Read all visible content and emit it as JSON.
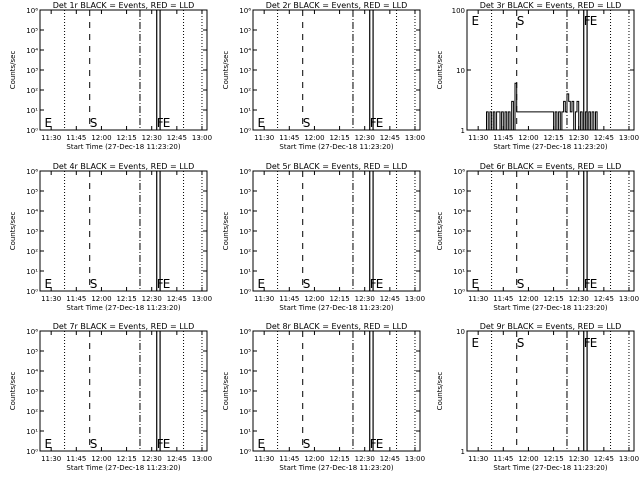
{
  "panels": [
    {
      "title": "Det 1r BLACK = Events, RED = LLD",
      "ylabel": "Counts/sec",
      "xlabel": "Start Time (27-Dec-18 11:23:20)",
      "y_ticks": [
        "10⁶",
        "10⁵",
        "10⁴",
        "10³",
        "10²",
        "10¹",
        "10⁰"
      ],
      "x_ticks": [
        "11:30",
        "11:45",
        "12:00",
        "12:15",
        "12:30",
        "12:45",
        "13:00"
      ],
      "markers": [
        {
          "label": "E",
          "t": "11:26"
        },
        {
          "label": "S",
          "t": "11:53"
        },
        {
          "label": "F",
          "t": "12:33"
        },
        {
          "label": "E",
          "t": "12:36"
        }
      ],
      "series": []
    },
    {
      "title": "Det 2r BLACK = Events, RED = LLD",
      "ylabel": "Counts/sec",
      "xlabel": "Start Time (27-Dec-18 11:23:20)",
      "y_ticks": [
        "10⁶",
        "10⁵",
        "10⁴",
        "10³",
        "10²",
        "10¹",
        "10⁰"
      ],
      "x_ticks": [
        "11:30",
        "11:45",
        "12:00",
        "12:15",
        "12:30",
        "12:45",
        "13:00"
      ],
      "markers": [
        {
          "label": "E",
          "t": "11:26"
        },
        {
          "label": "S",
          "t": "11:53"
        },
        {
          "label": "F",
          "t": "12:33"
        },
        {
          "label": "E",
          "t": "12:36"
        }
      ],
      "series": []
    },
    {
      "title": "Det 3r BLACK = Events, RED = LLD",
      "ylabel": "Counts/sec",
      "xlabel": "Start Time (27-Dec-18 11:23:20)",
      "y_ticks": [
        "100",
        "10",
        "1"
      ],
      "x_ticks": [
        "11:30",
        "11:45",
        "12:00",
        "12:15",
        "12:30",
        "12:45",
        "13:00"
      ],
      "markers": [
        {
          "label": "E",
          "t": "11:26"
        },
        {
          "label": "S",
          "t": "11:53"
        },
        {
          "label": "F",
          "t": "12:33"
        },
        {
          "label": "E",
          "t": "12:36"
        }
      ],
      "series": [
        {
          "x": [
            "11:34",
            "11:35",
            "11:36",
            "11:37",
            "11:38",
            "11:39",
            "11:40",
            "11:41",
            "11:42",
            "11:43",
            "11:44",
            "11:45",
            "11:46",
            "11:47",
            "11:48",
            "11:49",
            "11:50",
            "11:51",
            "11:52",
            "11:53",
            "12:15",
            "12:16",
            "12:17",
            "12:18",
            "12:19",
            "12:20",
            "12:21",
            "12:22",
            "12:23",
            "12:24",
            "12:25",
            "12:26",
            "12:27",
            "12:28",
            "12:29",
            "12:30",
            "12:31",
            "12:32",
            "12:33",
            "12:34",
            "12:35",
            "12:36",
            "12:37",
            "12:38",
            "12:39",
            "12:40",
            "12:41"
          ],
          "y": [
            1,
            2,
            1,
            2,
            1,
            2,
            1,
            2,
            2,
            1,
            2,
            1,
            2,
            1,
            2,
            1,
            3,
            1,
            6,
            2,
            1,
            2,
            1,
            2,
            1,
            2,
            3,
            2,
            4,
            3,
            2,
            3,
            1,
            2,
            3,
            1,
            2,
            1,
            1,
            2,
            1,
            2,
            1,
            2,
            1,
            2,
            1
          ]
        }
      ]
    },
    {
      "title": "Det 4r BLACK = Events, RED = LLD",
      "ylabel": "Counts/sec",
      "xlabel": "Start Time (27-Dec-18 11:23:20)",
      "y_ticks": [
        "10⁶",
        "10⁵",
        "10⁴",
        "10³",
        "10²",
        "10¹",
        "10⁰"
      ],
      "x_ticks": [
        "11:30",
        "11:45",
        "12:00",
        "12:15",
        "12:30",
        "12:45",
        "13:00"
      ],
      "markers": [
        {
          "label": "E",
          "t": "11:26"
        },
        {
          "label": "S",
          "t": "11:53"
        },
        {
          "label": "F",
          "t": "12:33"
        },
        {
          "label": "E",
          "t": "12:36"
        }
      ],
      "series": []
    },
    {
      "title": "Det 5r BLACK = Events, RED = LLD",
      "ylabel": "Counts/sec",
      "xlabel": "Start Time (27-Dec-18 11:23:20)",
      "y_ticks": [
        "10⁶",
        "10⁵",
        "10⁴",
        "10³",
        "10²",
        "10¹",
        "10⁰"
      ],
      "x_ticks": [
        "11:30",
        "11:45",
        "12:00",
        "12:15",
        "12:30",
        "12:45",
        "13:00"
      ],
      "markers": [
        {
          "label": "E",
          "t": "11:26"
        },
        {
          "label": "S",
          "t": "11:53"
        },
        {
          "label": "F",
          "t": "12:33"
        },
        {
          "label": "E",
          "t": "12:36"
        }
      ],
      "series": []
    },
    {
      "title": "Det 6r BLACK = Events, RED = LLD",
      "ylabel": "Counts/sec",
      "xlabel": "Start Time (27-Dec-18 11:23:20)",
      "y_ticks": [
        "10⁶",
        "10⁵",
        "10⁴",
        "10³",
        "10²",
        "10¹",
        "10⁰"
      ],
      "x_ticks": [
        "11:30",
        "11:45",
        "12:00",
        "12:15",
        "12:30",
        "12:45",
        "13:00"
      ],
      "markers": [
        {
          "label": "E",
          "t": "11:26"
        },
        {
          "label": "S",
          "t": "11:53"
        },
        {
          "label": "F",
          "t": "12:33"
        },
        {
          "label": "E",
          "t": "12:36"
        }
      ],
      "series": []
    },
    {
      "title": "Det 7r BLACK = Events, RED = LLD",
      "ylabel": "Counts/sec",
      "xlabel": "Start Time (27-Dec-18 11:23:20)",
      "y_ticks": [
        "10⁶",
        "10⁵",
        "10⁴",
        "10³",
        "10²",
        "10¹",
        "10⁰"
      ],
      "x_ticks": [
        "11:30",
        "11:45",
        "12:00",
        "12:15",
        "12:30",
        "12:45",
        "13:00"
      ],
      "markers": [
        {
          "label": "E",
          "t": "11:26"
        },
        {
          "label": "S",
          "t": "11:53"
        },
        {
          "label": "F",
          "t": "12:33"
        },
        {
          "label": "E",
          "t": "12:36"
        }
      ],
      "series": []
    },
    {
      "title": "Det 8r BLACK = Events, RED = LLD",
      "ylabel": "Counts/sec",
      "xlabel": "Start Time (27-Dec-18 11:23:20)",
      "y_ticks": [
        "10⁶",
        "10⁵",
        "10⁴",
        "10³",
        "10²",
        "10¹",
        "10⁰"
      ],
      "x_ticks": [
        "11:30",
        "11:45",
        "12:00",
        "12:15",
        "12:30",
        "12:45",
        "13:00"
      ],
      "markers": [
        {
          "label": "E",
          "t": "11:26"
        },
        {
          "label": "S",
          "t": "11:53"
        },
        {
          "label": "F",
          "t": "12:33"
        },
        {
          "label": "E",
          "t": "12:36"
        }
      ],
      "series": []
    },
    {
      "title": "Det 9r BLACK = Events, RED = LLD",
      "ylabel": "Counts/sec",
      "xlabel": "Start Time (27-Dec-18 11:23:20)",
      "y_ticks": [
        "10",
        "1"
      ],
      "x_ticks": [
        "11:30",
        "11:45",
        "12:00",
        "12:15",
        "12:30",
        "12:45",
        "13:00"
      ],
      "markers": [
        {
          "label": "E",
          "t": "11:26"
        },
        {
          "label": "S",
          "t": "11:53"
        },
        {
          "label": "F",
          "t": "12:33"
        },
        {
          "label": "E",
          "t": "12:36"
        }
      ],
      "series": []
    }
  ],
  "chart_data": [
    {
      "type": "line",
      "title": "Det 1r BLACK = Events, RED = LLD",
      "xlabel": "Start Time (27-Dec-18 11:23:20)",
      "ylabel": "Counts/sec",
      "xlim": [
        "11:23",
        "13:03"
      ],
      "ylim": [
        1,
        1000000
      ],
      "yscale": "log",
      "series": []
    },
    {
      "type": "line",
      "title": "Det 2r BLACK = Events, RED = LLD",
      "xlabel": "Start Time (27-Dec-18 11:23:20)",
      "ylabel": "Counts/sec",
      "xlim": [
        "11:23",
        "13:03"
      ],
      "ylim": [
        1,
        1000000
      ],
      "yscale": "log",
      "series": []
    },
    {
      "type": "line",
      "title": "Det 3r BLACK = Events, RED = LLD",
      "xlabel": "Start Time (27-Dec-18 11:23:20)",
      "ylabel": "Counts/sec",
      "xlim": [
        "11:23",
        "13:03"
      ],
      "ylim": [
        1,
        100
      ],
      "yscale": "log",
      "series": [
        {
          "x": [
            "11:34",
            "11:35",
            "11:36",
            "11:37",
            "11:38",
            "11:39",
            "11:40",
            "11:41",
            "11:42",
            "11:43",
            "11:44",
            "11:45",
            "11:46",
            "11:47",
            "11:48",
            "11:49",
            "11:50",
            "11:51",
            "11:52",
            "11:53",
            "12:15",
            "12:16",
            "12:17",
            "12:18",
            "12:19",
            "12:20",
            "12:21",
            "12:22",
            "12:23",
            "12:24",
            "12:25",
            "12:26",
            "12:27",
            "12:28",
            "12:29",
            "12:30",
            "12:31",
            "12:32",
            "12:33",
            "12:34",
            "12:35",
            "12:36",
            "12:37",
            "12:38",
            "12:39",
            "12:40",
            "12:41"
          ],
          "values": [
            1,
            2,
            1,
            2,
            1,
            2,
            1,
            2,
            2,
            1,
            2,
            1,
            2,
            1,
            2,
            1,
            3,
            1,
            6,
            2,
            1,
            2,
            1,
            2,
            1,
            2,
            3,
            2,
            4,
            3,
            2,
            3,
            1,
            2,
            3,
            1,
            2,
            1,
            1,
            2,
            1,
            2,
            1,
            2,
            1,
            2,
            1
          ]
        }
      ]
    },
    {
      "type": "line",
      "title": "Det 4r BLACK = Events, RED = LLD",
      "xlabel": "Start Time (27-Dec-18 11:23:20)",
      "ylabel": "Counts/sec",
      "xlim": [
        "11:23",
        "13:03"
      ],
      "ylim": [
        1,
        1000000
      ],
      "yscale": "log",
      "series": []
    },
    {
      "type": "line",
      "title": "Det 5r BLACK = Events, RED = LLD",
      "xlabel": "Start Time (27-Dec-18 11:23:20)",
      "ylabel": "Counts/sec",
      "xlim": [
        "11:23",
        "13:03"
      ],
      "ylim": [
        1,
        1000000
      ],
      "yscale": "log",
      "series": []
    },
    {
      "type": "line",
      "title": "Det 6r BLACK = Events, RED = LLD",
      "xlabel": "Start Time (27-Dec-18 11:23:20)",
      "ylabel": "Counts/sec",
      "xlim": [
        "11:23",
        "13:03"
      ],
      "ylim": [
        1,
        1000000
      ],
      "yscale": "log",
      "series": []
    },
    {
      "type": "line",
      "title": "Det 7r BLACK = Events, RED = LLD",
      "xlabel": "Start Time (27-Dec-18 11:23:20)",
      "ylabel": "Counts/sec",
      "xlim": [
        "11:23",
        "13:03"
      ],
      "ylim": [
        1,
        1000000
      ],
      "yscale": "log",
      "series": []
    },
    {
      "type": "line",
      "title": "Det 8r BLACK = Events, RED = LLD",
      "xlabel": "Start Time (27-Dec-18 11:23:20)",
      "ylabel": "Counts/sec",
      "xlim": [
        "11:23",
        "13:03"
      ],
      "ylim": [
        1,
        1000000
      ],
      "yscale": "log",
      "series": []
    },
    {
      "type": "line",
      "title": "Det 9r BLACK = Events, RED = LLD",
      "xlabel": "Start Time (27-Dec-18 11:23:20)",
      "ylabel": "Counts/sec",
      "xlim": [
        "11:23",
        "13:03"
      ],
      "ylim": [
        1,
        10
      ],
      "yscale": "log",
      "series": []
    }
  ]
}
